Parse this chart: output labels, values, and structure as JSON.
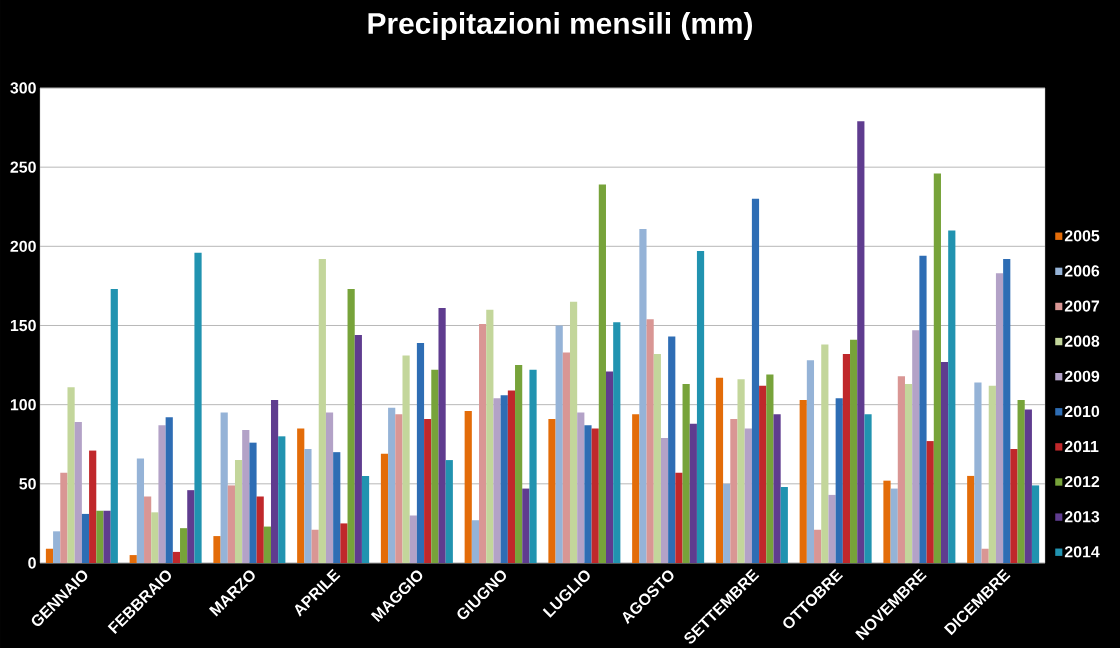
{
  "chart_data": {
    "type": "bar",
    "title": "Precipitazioni mensili (mm)",
    "categories": [
      "GENNAIO",
      "FEBBRAIO",
      "MARZO",
      "APRILE",
      "MAGGIO",
      "GIUGNO",
      "LUGLIO",
      "AGOSTO",
      "SETTEMBRE",
      "OTTOBRE",
      "NOVEMBRE",
      "DICEMBRE"
    ],
    "series": [
      {
        "name": "2005",
        "color": "#e36c09",
        "values": [
          9,
          5,
          17,
          85,
          69,
          96,
          91,
          94,
          117,
          103,
          52,
          55
        ]
      },
      {
        "name": "2006",
        "color": "#95b3d7",
        "values": [
          20,
          66,
          95,
          72,
          98,
          27,
          150,
          211,
          50,
          128,
          47,
          114
        ]
      },
      {
        "name": "2007",
        "color": "#d99694",
        "values": [
          57,
          42,
          49,
          21,
          94,
          151,
          133,
          154,
          91,
          21,
          118,
          9
        ]
      },
      {
        "name": "2008",
        "color": "#c3d69b",
        "values": [
          111,
          32,
          65,
          192,
          131,
          160,
          165,
          132,
          116,
          138,
          113,
          112
        ]
      },
      {
        "name": "2009",
        "color": "#b3a2c7",
        "values": [
          89,
          87,
          84,
          95,
          30,
          104,
          95,
          79,
          85,
          43,
          147,
          183
        ]
      },
      {
        "name": "2010",
        "color": "#2e6db4",
        "values": [
          31,
          92,
          76,
          70,
          139,
          106,
          87,
          143,
          230,
          104,
          194,
          192
        ]
      },
      {
        "name": "2011",
        "color": "#c0282b",
        "values": [
          71,
          7,
          42,
          25,
          91,
          109,
          85,
          57,
          112,
          132,
          77,
          72
        ]
      },
      {
        "name": "2012",
        "color": "#77a33a",
        "values": [
          33,
          22,
          23,
          173,
          122,
          125,
          239,
          113,
          119,
          141,
          246,
          103
        ]
      },
      {
        "name": "2013",
        "color": "#5f3c8f",
        "values": [
          33,
          46,
          103,
          144,
          161,
          47,
          121,
          88,
          94,
          279,
          127,
          97
        ]
      },
      {
        "name": "2014",
        "color": "#2193b0",
        "values": [
          173,
          196,
          80,
          55,
          65,
          122,
          152,
          197,
          48,
          94,
          210,
          49
        ]
      }
    ],
    "ylim": [
      0,
      300
    ],
    "yticks": [
      0,
      50,
      100,
      150,
      200,
      250,
      300
    ],
    "grid": "y",
    "legend": "right"
  }
}
